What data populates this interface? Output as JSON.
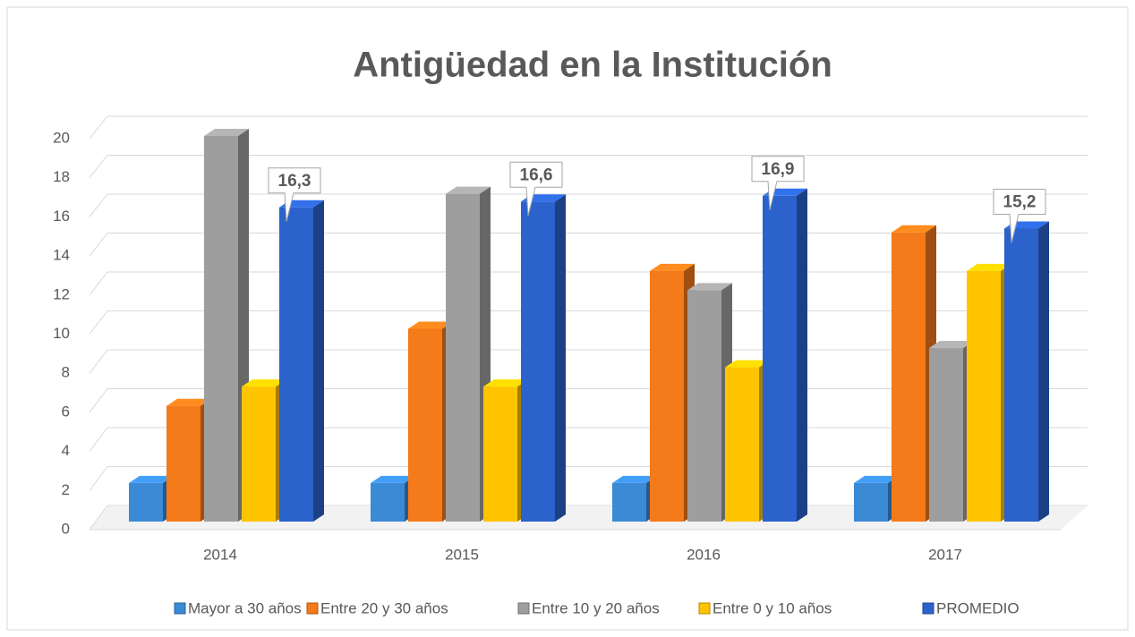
{
  "chart_data": {
    "type": "bar3d",
    "title": "Antigüedad en la Institución",
    "categories": [
      "2014",
      "2015",
      "2016",
      "2017"
    ],
    "series": [
      {
        "name": "Mayor a 30 años",
        "color": "#3a8ad6",
        "values": [
          2,
          2,
          2,
          2
        ]
      },
      {
        "name": "Entre 20 y 30 años",
        "color": "#f47a1a",
        "values": [
          6,
          10,
          13,
          15
        ]
      },
      {
        "name": "Entre 10 y 20 años",
        "color": "#9e9e9e",
        "values": [
          20,
          17,
          12,
          9
        ]
      },
      {
        "name": "Entre 0 y 10 años",
        "color": "#ffc400",
        "values": [
          7,
          7,
          8,
          13
        ]
      },
      {
        "name": "PROMEDIO",
        "color": "#2b62cc",
        "values": [
          16.3,
          16.6,
          16.9,
          15.2
        ],
        "value_labels": [
          "16,3",
          "16,6",
          "16,9",
          "15,2"
        ]
      }
    ],
    "ylim": [
      0,
      20
    ],
    "yticks": [
      0,
      2,
      4,
      6,
      8,
      10,
      12,
      14,
      16,
      18,
      20
    ],
    "grid": true,
    "legend": "bottom"
  }
}
